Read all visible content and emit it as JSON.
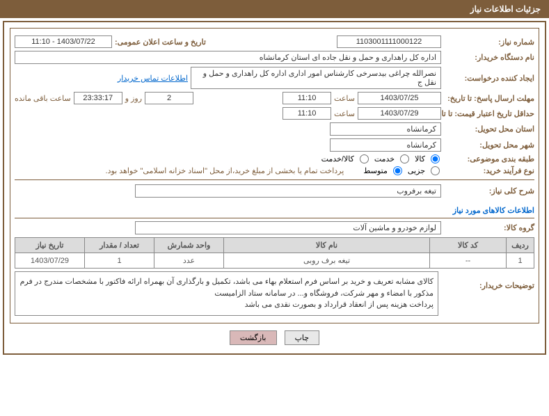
{
  "header": {
    "title": "جزئیات اطلاعات نیاز"
  },
  "fields": {
    "needNumber": {
      "label": "شماره نیاز:",
      "value": "1103001111000122"
    },
    "announceDate": {
      "label": "تاریخ و ساعت اعلان عمومی:",
      "value": "1403/07/22 - 11:10"
    },
    "buyerOrg": {
      "label": "نام دستگاه خریدار:",
      "value": "اداره کل راهداری و حمل و نقل جاده ای استان کرمانشاه"
    },
    "requester": {
      "label": "ایجاد کننده درخواست:",
      "value": "نصرالله چراغی بیدسرخی کارشناس امور اداری اداره کل راهداری و حمل و نقل ج"
    },
    "buyerContact": "اطلاعات تماس خریدار",
    "responseDeadline": {
      "label": "مهلت ارسال پاسخ: تا تاریخ:",
      "date": "1403/07/25",
      "timeLabel": "ساعت",
      "time": "11:10",
      "daysLabel": "روز و",
      "days": "2",
      "remainingTime": "23:33:17",
      "remainingLabel": "ساعت باقی مانده"
    },
    "validityDeadline": {
      "label": "حداقل تاریخ اعتبار قیمت: تا تاریخ:",
      "date": "1403/07/29",
      "timeLabel": "ساعت",
      "time": "11:10"
    },
    "deliveryProvince": {
      "label": "استان محل تحویل:",
      "value": "کرمانشاه"
    },
    "deliveryCity": {
      "label": "شهر محل تحویل:",
      "value": "کرمانشاه"
    },
    "categoryType": {
      "label": "طبقه بندی موضوعی:",
      "options": {
        "goods": "کالا",
        "service": "خدمت",
        "goodsService": "کالا/خدمت"
      }
    },
    "purchaseType": {
      "label": "نوع فرآیند خرید:",
      "options": {
        "partial": "جزیی",
        "medium": "متوسط"
      },
      "note": "پرداخت تمام یا بخشی از مبلغ خرید،از محل \"اسناد خزانه اسلامی\" خواهد بود."
    },
    "generalDesc": {
      "label": "شرح کلی نیاز:",
      "value": "تیغه برفروب"
    },
    "goodsInfo": {
      "label": "اطلاعات کالاهای مورد نیاز"
    },
    "goodsGroup": {
      "label": "گروه کالا:",
      "value": "لوازم خودرو و ماشین آلات"
    },
    "buyerDesc": {
      "label": "توضیحات خریدار:",
      "value": "کالای مشابه تعریف و خرید بر اساس فرم استعلام بهاء می باشد، تکمیل و بارگذاری آن بهمراه ارائه فاکتور با مشخصات مندرج در فرم مذکور با امضاء و مهر شرکت، فروشگاه و... در سامانه ستاد الزامیست\nپرداخت هزینه پس از انعقاد قرارداد و بصورت نقدی می باشد"
    }
  },
  "table": {
    "headers": {
      "row": "ردیف",
      "code": "کد کالا",
      "name": "نام کالا",
      "unit": "واحد شمارش",
      "qty": "تعداد / مقدار",
      "date": "تاریخ نیاز"
    },
    "rows": [
      {
        "row": "1",
        "code": "--",
        "name": "تیغه برف روبی",
        "unit": "عدد",
        "qty": "1",
        "date": "1403/07/29"
      }
    ]
  },
  "buttons": {
    "print": "چاپ",
    "back": "بازگشت"
  }
}
